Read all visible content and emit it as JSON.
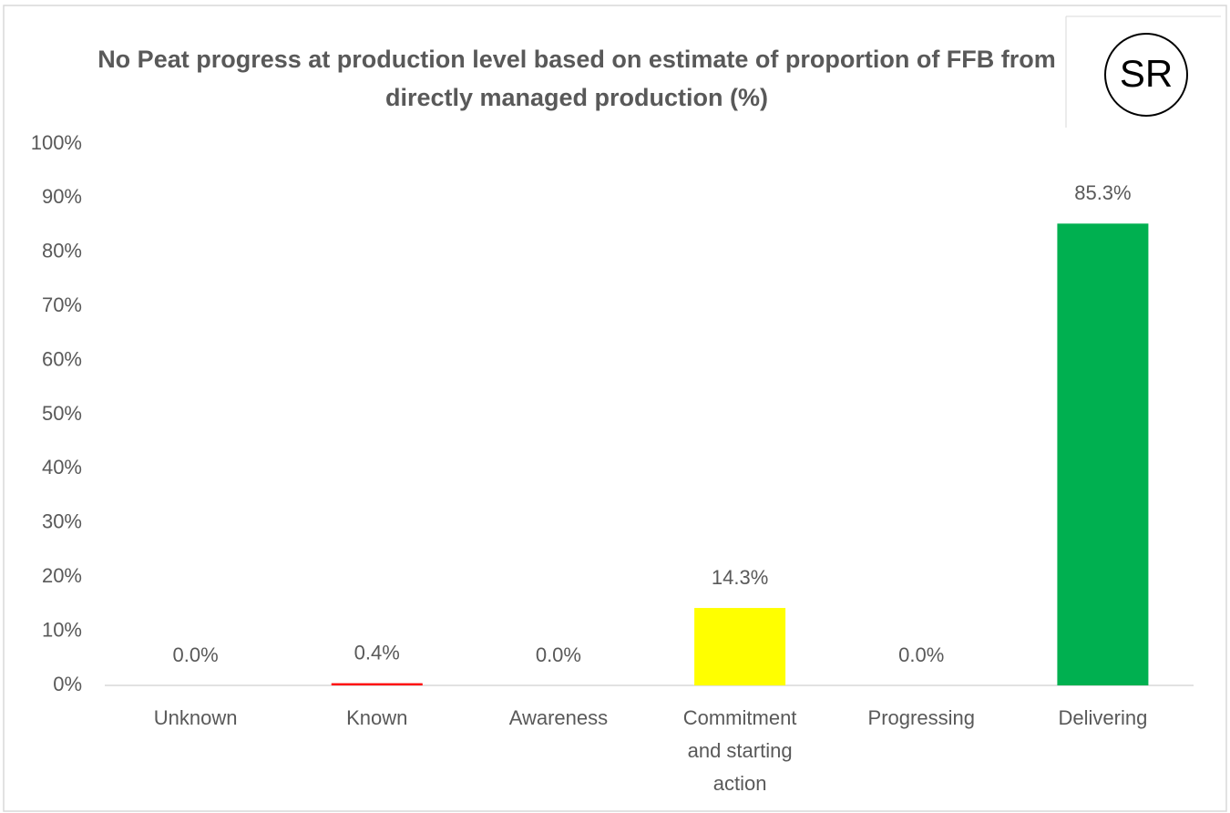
{
  "chart_data": {
    "type": "bar",
    "title": "No Peat progress at production level based on estimate of proportion of FFB from directly managed production (%)",
    "logo": "SR",
    "categories": [
      "Unknown",
      "Known",
      "Awareness",
      "Commitment and starting action",
      "Progressing",
      "Delivering"
    ],
    "values": [
      0,
      0.4,
      0,
      14.3,
      0,
      85.3
    ],
    "value_labels": [
      "0.0%",
      "0.4%",
      "0.0%",
      "14.3%",
      "0.0%",
      "85.3%"
    ],
    "colors": [
      "#808080",
      "#ff0000",
      "#ffc000",
      "#ffff00",
      "#92d050",
      "#00b050"
    ],
    "ylim": [
      0,
      100
    ],
    "yticks": [
      {
        "value": 0,
        "label": "0%"
      },
      {
        "value": 10,
        "label": "10%"
      },
      {
        "value": 20,
        "label": "20%"
      },
      {
        "value": 30,
        "label": "30%"
      },
      {
        "value": 40,
        "label": "40%"
      },
      {
        "value": 50,
        "label": "50%"
      },
      {
        "value": 60,
        "label": "60%"
      },
      {
        "value": 70,
        "label": "70%"
      },
      {
        "value": 80,
        "label": "80%"
      },
      {
        "value": 90,
        "label": "90%"
      },
      {
        "value": 100,
        "label": "100%"
      }
    ],
    "grid": false
  }
}
